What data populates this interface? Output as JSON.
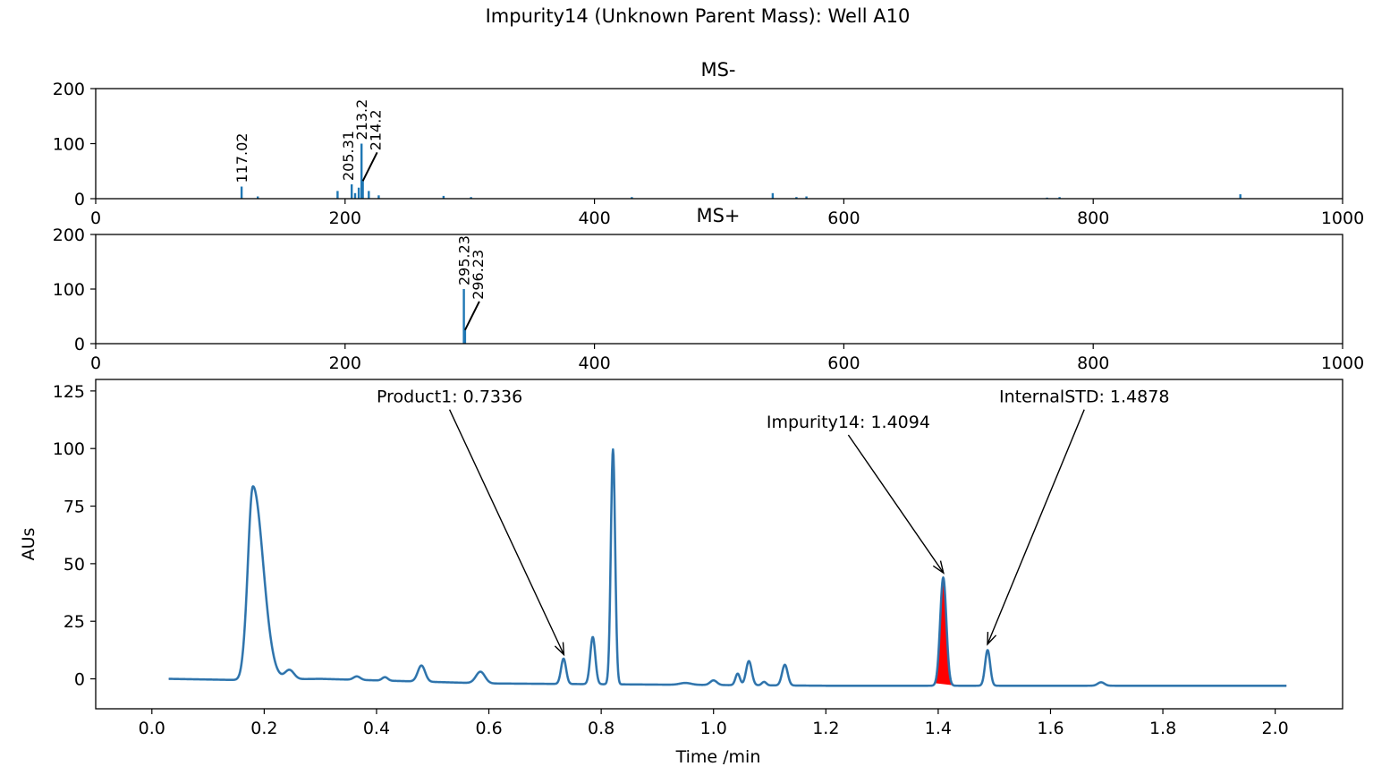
{
  "figure": {
    "title": "Impurity14 (Unknown Parent Mass): Well A10"
  },
  "colors": {
    "spectrum": "#1f77b4",
    "trace": "#1f77b4",
    "trace_under": "#d62728",
    "peak_fill": "#ff0000",
    "axes": "#000000"
  },
  "chart_data": [
    {
      "type": "bar",
      "title": "MS-",
      "xlabel": "",
      "ylabel": "",
      "xlim": [
        0,
        1000
      ],
      "ylim": [
        0,
        200
      ],
      "xticks": [
        0,
        200,
        400,
        600,
        800,
        1000
      ],
      "yticks": [
        0,
        100,
        200
      ],
      "grid": false,
      "peaks": [
        {
          "mz": 117.02,
          "intensity": 22
        },
        {
          "mz": 130,
          "intensity": 4
        },
        {
          "mz": 194,
          "intensity": 14
        },
        {
          "mz": 205.31,
          "intensity": 26
        },
        {
          "mz": 208,
          "intensity": 10
        },
        {
          "mz": 211,
          "intensity": 20
        },
        {
          "mz": 213.2,
          "intensity": 100
        },
        {
          "mz": 214.2,
          "intensity": 32
        },
        {
          "mz": 219,
          "intensity": 14
        },
        {
          "mz": 227,
          "intensity": 6
        },
        {
          "mz": 279,
          "intensity": 5
        },
        {
          "mz": 301,
          "intensity": 3
        },
        {
          "mz": 430,
          "intensity": 3
        },
        {
          "mz": 543,
          "intensity": 10
        },
        {
          "mz": 562,
          "intensity": 3
        },
        {
          "mz": 570,
          "intensity": 4
        },
        {
          "mz": 763,
          "intensity": 2
        },
        {
          "mz": 773,
          "intensity": 3
        },
        {
          "mz": 918,
          "intensity": 8
        }
      ],
      "annotations": [
        {
          "label": "117.02",
          "mz": 117.02,
          "intensity": 22
        },
        {
          "label": "205.31",
          "mz": 205.31,
          "intensity": 26
        },
        {
          "label": "213.2",
          "mz": 213.2,
          "intensity": 100
        },
        {
          "label": "214.2",
          "mz": 214.2,
          "intensity": 32
        }
      ]
    },
    {
      "type": "bar",
      "title": "MS+",
      "xlabel": "",
      "ylabel": "",
      "xlim": [
        0,
        1000
      ],
      "ylim": [
        0,
        200
      ],
      "xticks": [
        0,
        200,
        400,
        600,
        800,
        1000
      ],
      "yticks": [
        0,
        100,
        200
      ],
      "grid": false,
      "peaks": [
        {
          "mz": 295.23,
          "intensity": 100
        },
        {
          "mz": 296.23,
          "intensity": 25
        }
      ],
      "annotations": [
        {
          "label": "295.23",
          "mz": 295.23,
          "intensity": 100
        },
        {
          "label": "296.23",
          "mz": 296.23,
          "intensity": 25
        }
      ]
    },
    {
      "type": "line",
      "title": "",
      "xlabel": "Time /min",
      "ylabel": "AUs",
      "xlim": [
        -0.1,
        2.12
      ],
      "ylim": [
        -13,
        130
      ],
      "xticks": [
        0.0,
        0.2,
        0.4,
        0.6,
        0.8,
        1.0,
        1.2,
        1.4,
        1.6,
        1.8,
        2.0
      ],
      "xtick_labels": [
        "0.0",
        "0.2",
        "0.4",
        "0.6",
        "0.8",
        "1.0",
        "1.2",
        "1.4",
        "1.6",
        "1.8",
        "2.0"
      ],
      "yticks": [
        0,
        25,
        50,
        75,
        100,
        125
      ],
      "grid": false,
      "time_range": [
        0.03,
        2.02
      ],
      "baseline": [
        [
          0.03,
          0
        ],
        [
          0.15,
          -0.5
        ],
        [
          0.3,
          0
        ],
        [
          0.6,
          -2
        ],
        [
          0.9,
          -2.5
        ],
        [
          1.2,
          -3
        ],
        [
          1.6,
          -3
        ],
        [
          2.02,
          -3
        ]
      ],
      "peaks": [
        {
          "rt": 0.163,
          "height": 1,
          "width": 0.004
        },
        {
          "rt": 0.18,
          "height": 84,
          "width": 0.009,
          "tail": 0.018
        },
        {
          "rt": 0.245,
          "height": 4,
          "width": 0.008
        },
        {
          "rt": 0.365,
          "height": 1.5,
          "width": 0.006
        },
        {
          "rt": 0.415,
          "height": 1.5,
          "width": 0.005
        },
        {
          "rt": 0.48,
          "height": 7,
          "width": 0.0065
        },
        {
          "rt": 0.585,
          "height": 5,
          "width": 0.008
        },
        {
          "rt": 0.733,
          "height": 11,
          "width": 0.0045
        },
        {
          "rt": 0.785,
          "height": 20.5,
          "width": 0.0045
        },
        {
          "rt": 0.821,
          "height": 102,
          "width": 0.0038
        },
        {
          "rt": 0.95,
          "height": 0.8,
          "width": 0.01
        },
        {
          "rt": 1.0,
          "height": 2,
          "width": 0.006
        },
        {
          "rt": 1.043,
          "height": 5,
          "width": 0.004
        },
        {
          "rt": 1.063,
          "height": 10.5,
          "width": 0.005
        },
        {
          "rt": 1.09,
          "height": 1.5,
          "width": 0.004
        },
        {
          "rt": 1.127,
          "height": 9,
          "width": 0.005
        },
        {
          "rt": 1.409,
          "height": 47,
          "width": 0.0055
        },
        {
          "rt": 1.488,
          "height": 15.5,
          "width": 0.0045
        },
        {
          "rt": 1.69,
          "height": 1.5,
          "width": 0.006
        }
      ],
      "filled_peak": {
        "start": 1.394,
        "end": 1.427,
        "apex": 1.409
      },
      "annotations": [
        {
          "label": "Product1: 0.7336",
          "x": 0.7336,
          "y": 10.5,
          "text_x": 0.53,
          "text_y": 120
        },
        {
          "label": "Impurity14: 1.4094",
          "x": 1.4094,
          "y": 46,
          "text_x": 1.24,
          "text_y": 109
        },
        {
          "label": "InternalSTD: 1.4878",
          "x": 1.4878,
          "y": 15,
          "text_x": 1.66,
          "text_y": 120
        }
      ]
    }
  ]
}
